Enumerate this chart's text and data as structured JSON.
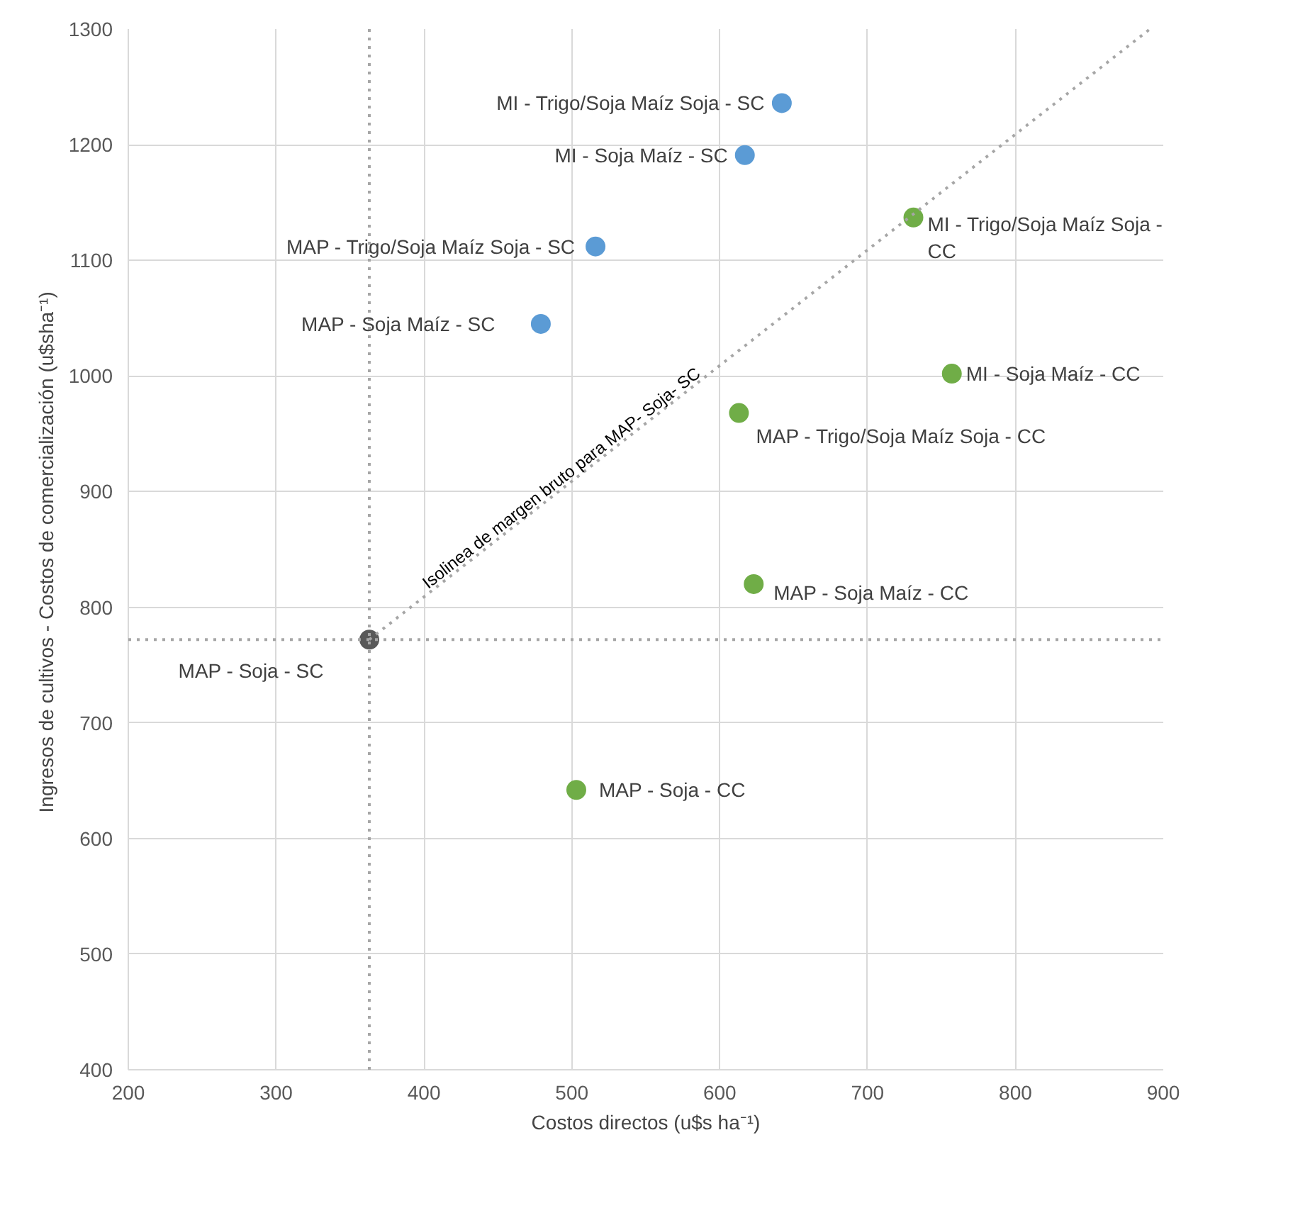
{
  "chart_data": {
    "type": "scatter",
    "xlabel": "Costos directos (u$s ha⁻¹)",
    "ylabel": "Ingresos de cultivos - Costos de comercialización  (u$sha⁻¹)",
    "xlim": [
      200,
      900
    ],
    "ylim": [
      400,
      1300
    ],
    "xticks": [
      200,
      300,
      400,
      500,
      600,
      700,
      800,
      900
    ],
    "yticks": [
      400,
      500,
      600,
      700,
      800,
      900,
      1000,
      1100,
      1200,
      1300
    ],
    "grid": true,
    "marker": "circle",
    "series": [
      {
        "name": "MI - Trigo/Soja Maíz Soja - SC",
        "color": "#5b9bd5",
        "x": [
          642
        ],
        "values": [
          1236
        ]
      },
      {
        "name": "MI - Soja Maíz - SC",
        "color": "#5b9bd5",
        "x": [
          617
        ],
        "values": [
          1191
        ]
      },
      {
        "name": "MAP - Trigo/Soja Maíz Soja - SC",
        "color": "#5b9bd5",
        "x": [
          516
        ],
        "values": [
          1112
        ]
      },
      {
        "name": "MAP - Soja Maíz - SC",
        "color": "#5b9bd5",
        "x": [
          479
        ],
        "values": [
          1045
        ]
      },
      {
        "name": "MI - Trigo/Soja Maíz Soja - CC",
        "color": "#70ad47",
        "x": [
          731
        ],
        "values": [
          1137
        ]
      },
      {
        "name": "MI - Soja Maíz - CC",
        "color": "#70ad47",
        "x": [
          757
        ],
        "values": [
          1002
        ]
      },
      {
        "name": "MAP - Trigo/Soja Maíz Soja - CC",
        "color": "#70ad47",
        "x": [
          613
        ],
        "values": [
          968
        ]
      },
      {
        "name": "MAP - Soja Maíz - CC",
        "color": "#70ad47",
        "x": [
          623
        ],
        "values": [
          820
        ]
      },
      {
        "name": "MAP - Soja - SC",
        "color": "#595959",
        "x": [
          363
        ],
        "values": [
          772
        ]
      },
      {
        "name": "MAP - Soja - CC",
        "color": "#70ad47",
        "x": [
          503
        ],
        "values": [
          642
        ]
      },
      {
        "type": "line",
        "color": "#a6a6a6",
        "line_style": "dotted",
        "marker": "none",
        "x": [
          363,
          891
        ],
        "values": [
          772,
          1300
        ]
      }
    ],
    "ref_lines": [
      {
        "axis": "x",
        "value": 363,
        "color": "#a6a6a6",
        "line_style": "dotted"
      },
      {
        "axis": "y",
        "value": 772,
        "color": "#a6a6a6",
        "line_style": "dotted"
      }
    ],
    "annotations": [
      {
        "text": "Isolinea de margen bruto para MAP- Soja- SC",
        "x": 497,
        "y": 905
      }
    ]
  }
}
